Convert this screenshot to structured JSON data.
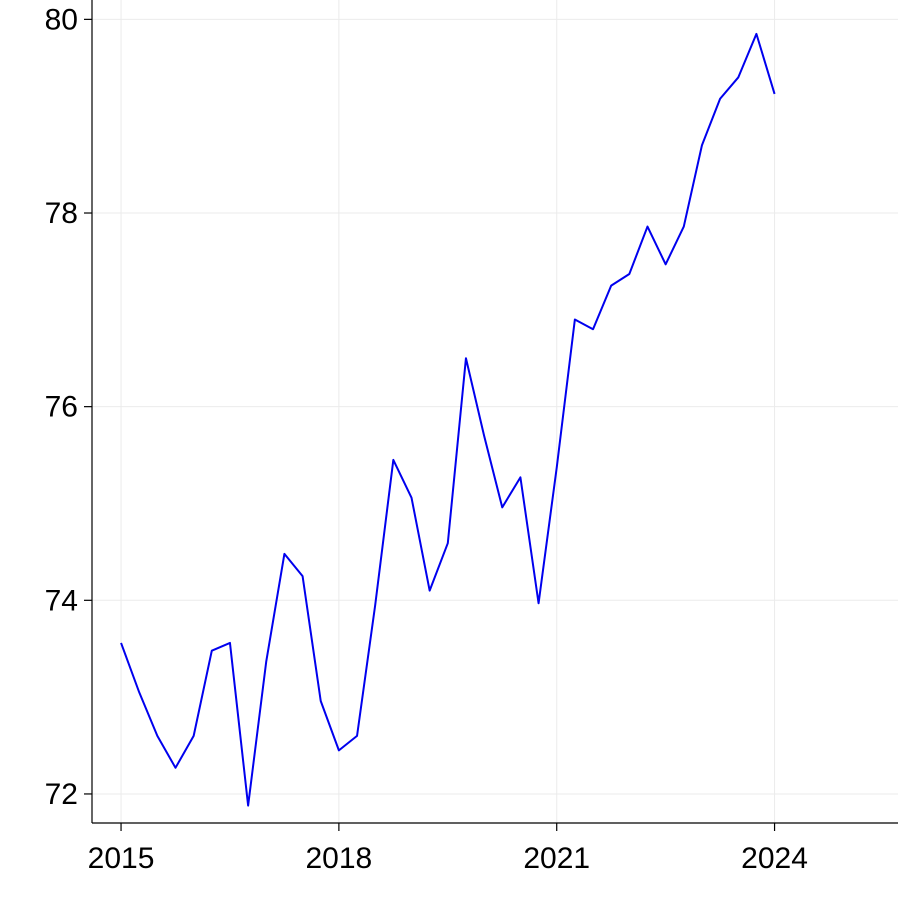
{
  "chart_data": {
    "type": "line",
    "title": "",
    "xlabel": "",
    "ylabel": "",
    "xlim": [
      2014.6,
      2025.7
    ],
    "ylim": [
      71.7,
      80.2
    ],
    "grid": true,
    "x_ticks": [
      2015,
      2018,
      2021,
      2024
    ],
    "x_tick_labels": [
      "2015",
      "2018",
      "2021",
      "2024"
    ],
    "y_ticks": [
      72,
      74,
      76,
      78,
      80
    ],
    "y_tick_labels": [
      "72",
      "74",
      "76",
      "78",
      "80"
    ],
    "series": [
      {
        "color": "#0000ee",
        "x": [
          2015.0,
          2015.25,
          2015.5,
          2015.75,
          2016.0,
          2016.25,
          2016.5,
          2016.75,
          2017.0,
          2017.25,
          2017.5,
          2017.75,
          2018.0,
          2018.25,
          2018.5,
          2018.75,
          2019.0,
          2019.25,
          2019.5,
          2019.75,
          2020.0,
          2020.25,
          2020.5,
          2020.75,
          2021.0,
          2021.25,
          2021.5,
          2021.75,
          2022.0,
          2022.25,
          2022.5,
          2022.75,
          2023.0,
          2023.25,
          2023.5,
          2023.75,
          2024.0
        ],
        "y": [
          73.56,
          73.05,
          72.6,
          72.27,
          72.6,
          73.48,
          73.56,
          71.88,
          73.37,
          74.48,
          74.25,
          72.96,
          72.45,
          72.6,
          73.95,
          75.45,
          75.06,
          74.1,
          74.59,
          76.5,
          75.7,
          74.96,
          75.27,
          73.97,
          75.37,
          76.9,
          76.8,
          77.25,
          77.37,
          77.86,
          77.47,
          77.86,
          78.7,
          79.18,
          79.4,
          79.85,
          79.23
        ]
      }
    ]
  }
}
